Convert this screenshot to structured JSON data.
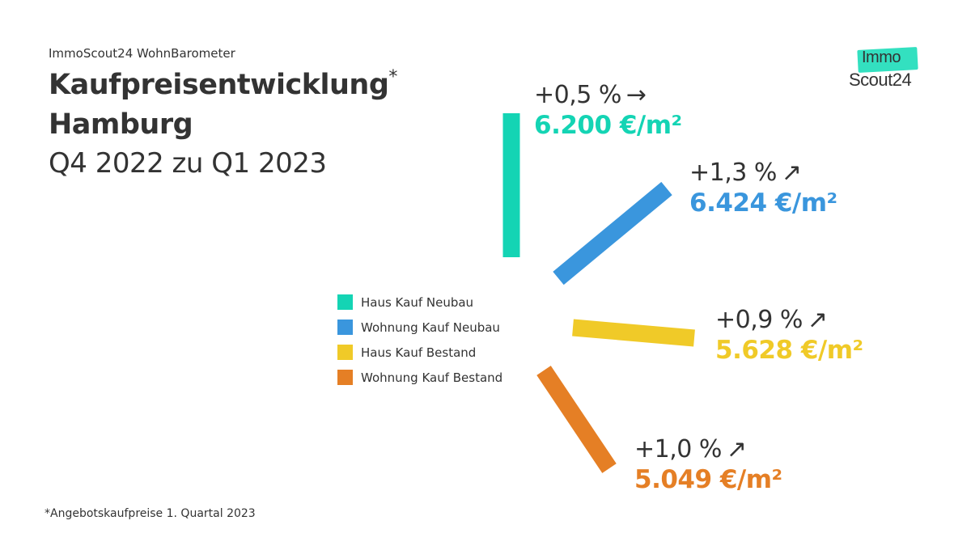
{
  "header": {
    "supertitle": "ImmoScout24 WohnBarometer",
    "title_line1": "Kaufpreisentwicklung",
    "title_asterisk": "*",
    "title_line2": "Hamburg",
    "title_line3": "Q4 2022 zu Q1 2023"
  },
  "footnote": {
    "asterisk": "*",
    "text": "Angebotskaufpreise 1. Quartal 2023"
  },
  "logo": {
    "line1": "Immo",
    "line2": "Scout24",
    "badge_color": "#33e0c0"
  },
  "chart_data": {
    "type": "bar",
    "series": [
      {
        "name": "Haus Kauf Neubau",
        "change": "+0,5 %",
        "change_pct": 0.5,
        "arrow": "→",
        "arrow_icon": "arrow-right-icon",
        "price": "6.200 €/m²",
        "price_value": 6200,
        "color": "#14d4b4"
      },
      {
        "name": "Wohnung Kauf Neubau",
        "change": "+1,3 %",
        "change_pct": 1.3,
        "arrow": "↗",
        "arrow_icon": "arrow-up-right-icon",
        "price": "6.424 €/m²",
        "price_value": 6424,
        "color": "#3a96dd"
      },
      {
        "name": "Haus Kauf Bestand",
        "change": "+0,9 %",
        "change_pct": 0.9,
        "arrow": "↗",
        "arrow_icon": "arrow-up-right-icon",
        "price": "5.628 €/m²",
        "price_value": 5628,
        "color": "#f0ca28"
      },
      {
        "name": "Wohnung Kauf Bestand",
        "change": "+1,0 %",
        "change_pct": 1.0,
        "arrow": "↗",
        "arrow_icon": "arrow-up-right-icon",
        "price": "5.049 €/m²",
        "price_value": 5049,
        "color": "#e57f25"
      }
    ]
  }
}
